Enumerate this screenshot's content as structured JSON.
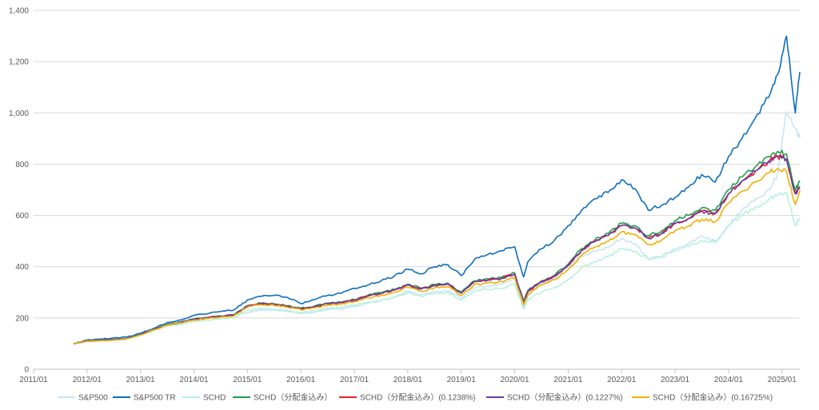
{
  "chart_data": {
    "type": "line",
    "title": "",
    "xlabel": "",
    "ylabel": "",
    "grid": true,
    "legend_position": "bottom",
    "xlim": [
      "2011-01",
      "2025-05"
    ],
    "ylim": [
      0,
      1400
    ],
    "y_ticks": [
      0,
      200,
      400,
      600,
      800,
      1000,
      1200,
      1400
    ],
    "y_tick_labels": [
      "0",
      "200",
      "400",
      "600",
      "800",
      "1,000",
      "1,200",
      "1,400"
    ],
    "x_tick_labels": [
      "2011/01",
      "2012/01",
      "2013/01",
      "2014/01",
      "2015/01",
      "2016/01",
      "2017/01",
      "2018/01",
      "2019/01",
      "2020/01",
      "2021/01",
      "2022/01",
      "2023/01",
      "2024/01",
      "2025/01"
    ],
    "x": [
      "2011-10",
      "2012-01",
      "2012-04",
      "2012-07",
      "2012-10",
      "2013-01",
      "2013-04",
      "2013-07",
      "2013-10",
      "2014-01",
      "2014-04",
      "2014-07",
      "2014-10",
      "2015-01",
      "2015-04",
      "2015-07",
      "2015-10",
      "2016-01",
      "2016-04",
      "2016-07",
      "2016-10",
      "2017-01",
      "2017-04",
      "2017-07",
      "2017-10",
      "2018-01",
      "2018-04",
      "2018-07",
      "2018-10",
      "2019-01",
      "2019-04",
      "2019-07",
      "2019-10",
      "2020-01",
      "2020-03",
      "2020-04",
      "2020-07",
      "2020-10",
      "2021-01",
      "2021-04",
      "2021-07",
      "2021-10",
      "2022-01",
      "2022-04",
      "2022-07",
      "2022-10",
      "2023-01",
      "2023-04",
      "2023-07",
      "2023-10",
      "2024-01",
      "2024-04",
      "2024-07",
      "2024-10",
      "2024-12",
      "2025-02",
      "2025-04",
      "2025-05"
    ],
    "series": [
      {
        "name": "S&P500",
        "color": "#c9e4f7",
        "values": [
          100,
          112,
          115,
          118,
          122,
          133,
          152,
          170,
          180,
          190,
          198,
          205,
          210,
          222,
          232,
          230,
          226,
          217,
          222,
          234,
          236,
          245,
          256,
          268,
          282,
          305,
          290,
          302,
          305,
          277,
          318,
          325,
          332,
          355,
          238,
          287,
          332,
          355,
          400,
          440,
          460,
          475,
          510,
          490,
          430,
          440,
          460,
          490,
          520,
          500,
          560,
          620,
          660,
          700,
          760,
          1005,
          940,
          905
        ]
      },
      {
        "name": "S&P500 TR",
        "color": "#0e6fbf",
        "values": [
          100,
          114,
          118,
          122,
          126,
          140,
          160,
          182,
          192,
          210,
          216,
          225,
          232,
          270,
          284,
          288,
          280,
          256,
          272,
          288,
          296,
          316,
          328,
          345,
          364,
          390,
          372,
          400,
          408,
          365,
          430,
          448,
          462,
          478,
          360,
          420,
          470,
          505,
          560,
          620,
          665,
          690,
          740,
          705,
          620,
          640,
          670,
          710,
          760,
          730,
          830,
          900,
          980,
          1060,
          1150,
          1300,
          1000,
          1160
        ]
      },
      {
        "name": "SCHD",
        "color": "#b6f2dc",
        "values": [
          100,
          108,
          110,
          112,
          118,
          132,
          152,
          168,
          175,
          187,
          192,
          197,
          200,
          230,
          238,
          234,
          228,
          220,
          228,
          238,
          240,
          250,
          262,
          268,
          280,
          300,
          284,
          296,
          300,
          268,
          306,
          312,
          316,
          332,
          235,
          272,
          300,
          318,
          350,
          395,
          420,
          440,
          470,
          460,
          430,
          440,
          470,
          480,
          500,
          495,
          560,
          600,
          630,
          660,
          680,
          690,
          560,
          590
        ]
      },
      {
        "name": "SCHD（分配金込み）",
        "color": "#1e9e4a",
        "values": [
          100,
          110,
          113,
          115,
          120,
          135,
          156,
          175,
          184,
          196,
          202,
          208,
          212,
          248,
          258,
          255,
          248,
          238,
          246,
          258,
          262,
          272,
          288,
          298,
          312,
          332,
          316,
          330,
          336,
          300,
          345,
          352,
          358,
          376,
          265,
          308,
          345,
          368,
          410,
          470,
          505,
          530,
          570,
          560,
          520,
          540,
          580,
          600,
          630,
          620,
          700,
          750,
          790,
          830,
          850,
          840,
          700,
          730
        ]
      },
      {
        "name": "SCHD（分配金込み）(0.1238%)",
        "color": "#e8202a",
        "values": [
          100,
          110,
          113,
          115,
          120,
          135,
          155,
          174,
          183,
          195,
          201,
          207,
          211,
          246,
          256,
          253,
          246,
          236,
          244,
          256,
          260,
          270,
          286,
          296,
          309,
          329,
          313,
          327,
          333,
          297,
          342,
          348,
          354,
          372,
          262,
          304,
          341,
          363,
          405,
          463,
          498,
          522,
          561,
          551,
          511,
          530,
          569,
          588,
          617,
          607,
          685,
          734,
          772,
          811,
          830,
          820,
          684,
          712
        ]
      },
      {
        "name": "SCHD（分配金込み）(0.1227%)",
        "color": "#6a3aa0",
        "values": [
          100,
          110,
          113,
          115,
          120,
          135,
          155,
          174,
          183,
          195,
          201,
          207,
          211,
          246,
          256,
          253,
          246,
          236,
          244,
          256,
          260,
          270,
          286,
          296,
          309,
          329,
          313,
          327,
          333,
          297,
          342,
          348,
          354,
          372,
          262,
          304,
          341,
          363,
          405,
          463,
          498,
          522,
          561,
          551,
          511,
          530,
          569,
          588,
          617,
          607,
          685,
          734,
          773,
          811,
          830,
          821,
          684,
          712
        ]
      },
      {
        "name": "SCHD（分配金込み）(0.16725%)",
        "color": "#f0b000",
        "values": [
          100,
          110,
          112,
          114,
          119,
          134,
          154,
          172,
          181,
          192,
          198,
          204,
          208,
          242,
          252,
          249,
          242,
          232,
          239,
          251,
          254,
          264,
          279,
          289,
          301,
          320,
          304,
          318,
          323,
          288,
          331,
          337,
          342,
          359,
          252,
          293,
          328,
          349,
          389,
          444,
          477,
          499,
          536,
          525,
          486,
          504,
          540,
          558,
          585,
          575,
          648,
          694,
          730,
          766,
          783,
          772,
          643,
          700
        ]
      }
    ]
  }
}
